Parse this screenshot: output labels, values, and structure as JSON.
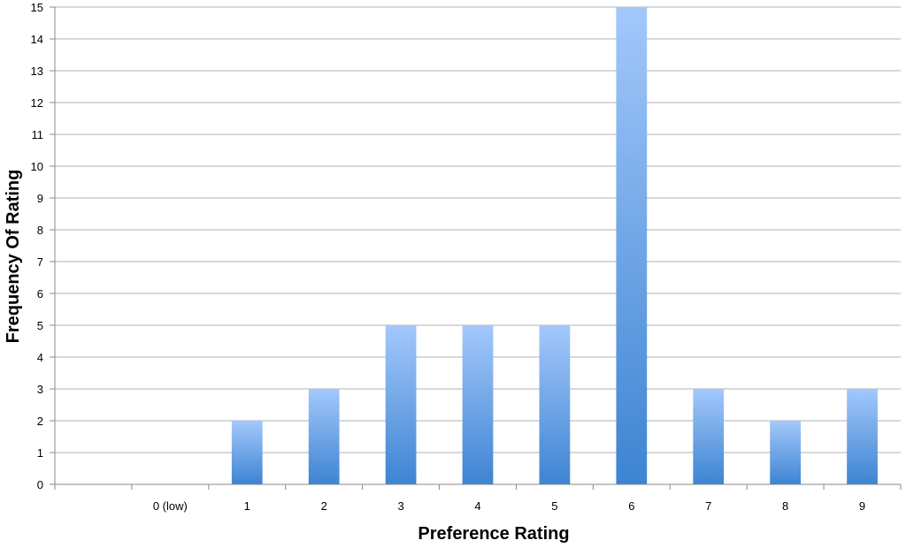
{
  "chart_data": {
    "type": "bar",
    "title": "",
    "xlabel": "Preference Rating",
    "ylabel": "Frequency Of Rating",
    "ylim": [
      0,
      15
    ],
    "y_ticks": [
      "0",
      "1",
      "2",
      "3",
      "4",
      "5",
      "6",
      "7",
      "8",
      "9",
      "10",
      "11",
      "12",
      "13",
      "14",
      "15"
    ],
    "categories": [
      "",
      "0 (low)",
      "1",
      "2",
      "3",
      "4",
      "5",
      "6",
      "7",
      "8",
      "9"
    ],
    "values": [
      0,
      0,
      2,
      3,
      5,
      5,
      5,
      15,
      3,
      2,
      3
    ],
    "grid": true,
    "legend": "none",
    "bar_color_top": "#a3c8fb",
    "bar_color_bottom": "#3d84d2",
    "gridline_color": "#b0b0b0"
  }
}
